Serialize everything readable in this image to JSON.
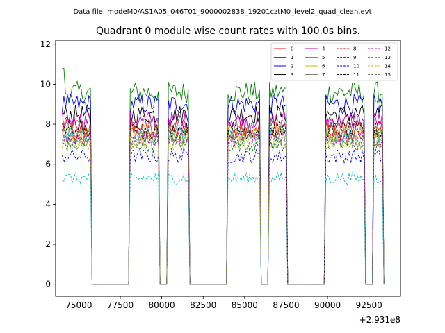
{
  "suptitle": "Data file: modeM0/AS1A05_046T01_9000002838_19201cztM0_level2_quad_clean.evt",
  "chart_data": {
    "type": "line",
    "title": "Quadrant 0 module wise count rates with 100.0s bins.",
    "xlabel": "",
    "ylabel": "",
    "offset_label": "+2.931e8",
    "xlim": [
      73600,
      94400
    ],
    "ylim": [
      -0.6,
      12.2
    ],
    "xticks": [
      75000,
      77500,
      80000,
      82500,
      85000,
      87500,
      90000,
      92500
    ],
    "xtick_labels": [
      "75000",
      "77500",
      "80000",
      "82500",
      "85000",
      "87500",
      "90000",
      "92500"
    ],
    "yticks": [
      0,
      2,
      4,
      6,
      8,
      10,
      12
    ],
    "ytick_labels": [
      "0",
      "2",
      "4",
      "6",
      "8",
      "10",
      "12"
    ],
    "legend_position": "top-right",
    "segments": [
      [
        74000,
        75700
      ],
      [
        78100,
        79800
      ],
      [
        80400,
        81600
      ],
      [
        84000,
        85900
      ],
      [
        86500,
        87500
      ],
      [
        89900,
        92200
      ],
      [
        92800,
        93300
      ]
    ],
    "gap_after": [
      75900,
      80000,
      82000,
      86100,
      87700,
      92300
    ],
    "series": [
      {
        "name": "0",
        "color": "#ff0000",
        "dash": "solid",
        "level": 7.9
      },
      {
        "name": "1",
        "color": "#008000",
        "dash": "solid",
        "level": 9.6
      },
      {
        "name": "2",
        "color": "#0000ff",
        "dash": "solid",
        "level": 9.0
      },
      {
        "name": "3",
        "color": "#000000",
        "dash": "solid",
        "level": 8.5
      },
      {
        "name": "4",
        "color": "#bf00bf",
        "dash": "solid",
        "level": 8.2
      },
      {
        "name": "5",
        "color": "#00bfbf",
        "dash": "solid",
        "level": 7.4
      },
      {
        "name": "6",
        "color": "#bfbf00",
        "dash": "solid",
        "level": 7.6
      },
      {
        "name": "7",
        "color": "#808080",
        "dash": "solid",
        "level": 7.8
      },
      {
        "name": "8",
        "color": "#ff0000",
        "dash": "dashed",
        "level": 7.5
      },
      {
        "name": "9",
        "color": "#008000",
        "dash": "dashed",
        "level": 7.0
      },
      {
        "name": "10",
        "color": "#0000ff",
        "dash": "dashed",
        "level": 6.4
      },
      {
        "name": "11",
        "color": "#000000",
        "dash": "dashed",
        "level": 7.7
      },
      {
        "name": "12",
        "color": "#bf00bf",
        "dash": "dashed",
        "level": 7.3
      },
      {
        "name": "13",
        "color": "#00bfbf",
        "dash": "dashed",
        "level": 5.3
      },
      {
        "name": "14",
        "color": "#bfbf00",
        "dash": "dashed",
        "level": 7.1
      },
      {
        "name": "15",
        "color": "#808080",
        "dash": "dashed",
        "level": 7.2
      }
    ]
  }
}
